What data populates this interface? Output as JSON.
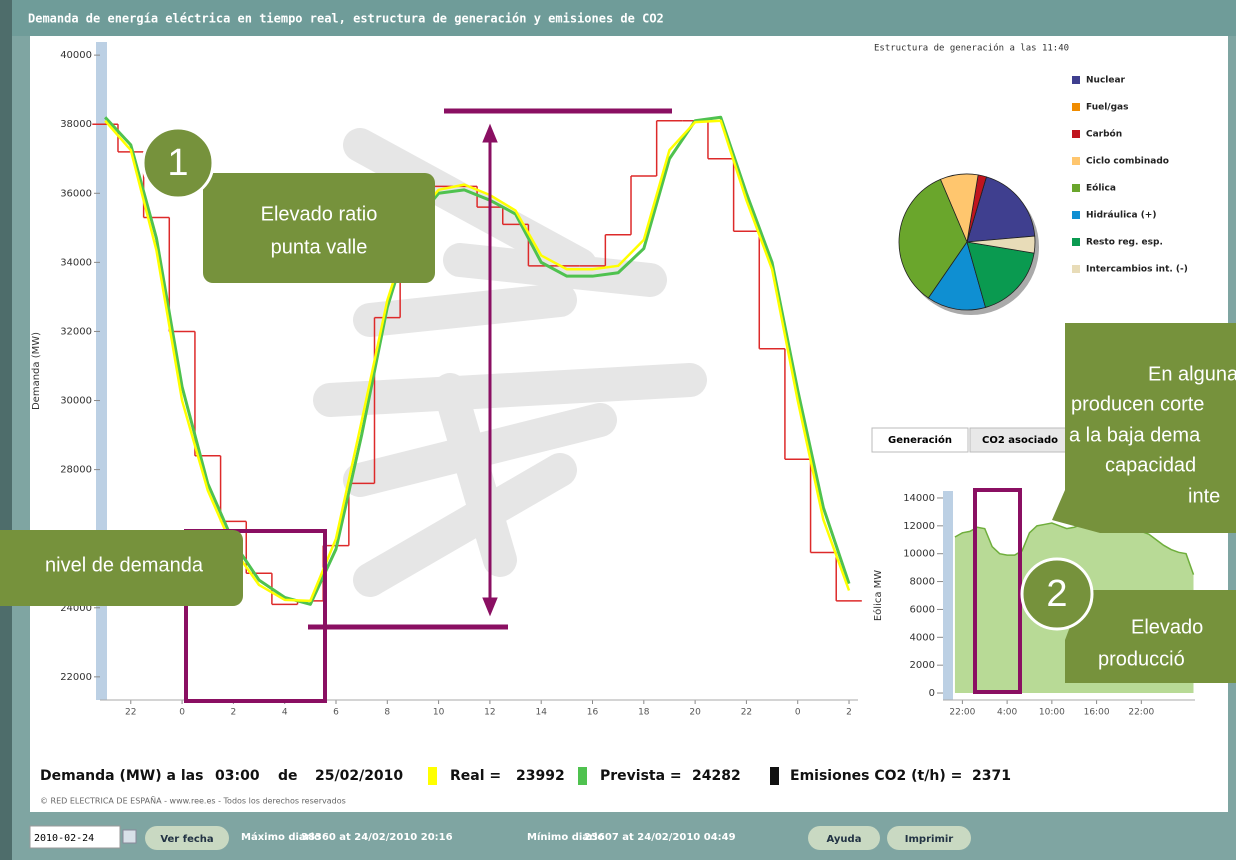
{
  "header": {
    "title": "Demanda de energía eléctrica en tiempo real, estructura de generación y emisiones de CO2"
  },
  "chart_data": [
    {
      "type": "line",
      "y_label": "Demanda (MW)",
      "x": [
        21,
        22,
        23,
        24,
        25,
        26,
        27,
        28,
        29,
        30,
        31,
        32,
        33,
        34,
        35,
        36,
        37,
        38,
        39,
        40,
        41,
        42,
        43,
        44,
        45,
        46,
        47,
        48,
        49,
        50
      ],
      "xlim": [
        20.8,
        50.35
      ],
      "xticks": [
        22,
        {
          "value": 24,
          "label": "0"
        },
        {
          "value": 26,
          "label": "2"
        },
        {
          "value": 28,
          "label": "4"
        },
        {
          "value": 30,
          "label": "6"
        },
        {
          "value": 32,
          "label": "8"
        },
        {
          "value": 34,
          "label": "10"
        },
        {
          "value": 36,
          "label": "12"
        },
        {
          "value": 38,
          "label": "14"
        },
        {
          "value": 40,
          "label": "16"
        },
        {
          "value": 42,
          "label": "18"
        },
        {
          "value": 44,
          "label": "20"
        },
        {
          "value": 46,
          "label": "22"
        },
        {
          "value": 48,
          "label": "0"
        },
        {
          "value": 50,
          "label": "2"
        }
      ],
      "ylim": [
        21330,
        40380
      ],
      "yticks": [
        22000,
        24000,
        26000,
        28000,
        30000,
        32000,
        34000,
        36000,
        38000,
        40000
      ],
      "series": [
        {
          "color": "#dd2a2a",
          "step": true,
          "values": [
            38000,
            37200,
            35300,
            32000,
            28400,
            26500,
            25000,
            24100,
            24200,
            25800,
            27600,
            32400,
            35500,
            36200,
            36200,
            35600,
            35100,
            33900,
            33900,
            33900,
            34800,
            36500,
            38100,
            38100,
            37000,
            34900,
            31500,
            28300,
            25600,
            24200
          ]
        },
        {
          "color": "#4fc24f",
          "values": [
            38200,
            37400,
            34700,
            30400,
            27600,
            25900,
            24800,
            24300,
            24100,
            25700,
            29000,
            32700,
            35100,
            36000,
            36100,
            35800,
            35400,
            34000,
            33600,
            33600,
            33700,
            34400,
            37000,
            38100,
            38200,
            36000,
            34000,
            30300,
            26900,
            24700
          ]
        },
        {
          "color": "#ffff00",
          "values": [
            38100,
            37250,
            34350,
            30000,
            27400,
            25700,
            24660,
            24230,
            24200,
            26000,
            29400,
            32900,
            35200,
            36100,
            36250,
            35950,
            35500,
            34200,
            33800,
            33800,
            33900,
            34650,
            37250,
            38060,
            38100,
            35800,
            33800,
            30000,
            26550,
            24500
          ]
        }
      ]
    },
    {
      "type": "pie",
      "title": "Estructura de generación a las 11:40",
      "categories": [
        "Nuclear",
        "Fuel/gas",
        "Carbón",
        "Ciclo combinado",
        "Eólica",
        "Hidráulica (+)",
        "Resto reg. esp.",
        "Intercambios int. (-)"
      ],
      "values": [
        19,
        0,
        2,
        9,
        34,
        14,
        18,
        4
      ],
      "colors": [
        "#3f3f8f",
        "#f08c00",
        "#c0141e",
        "#ffc66e",
        "#6aa62c",
        "#0f8fd2",
        "#0a9a50",
        "#e8dcb8"
      ]
    },
    {
      "type": "area",
      "tabs": [
        "Generación",
        "CO2 asociado"
      ],
      "y_label": "Eólica MW",
      "color": "#a6d17c",
      "x": [
        21,
        22,
        23,
        24,
        25,
        26,
        27,
        28,
        29,
        30,
        31,
        32,
        33,
        34,
        35,
        36,
        37,
        38,
        39,
        40,
        41,
        42,
        43,
        44,
        45,
        46,
        47,
        48,
        49,
        50,
        51,
        52,
        53
      ],
      "values": [
        11200,
        11500,
        11600,
        11900,
        11800,
        10500,
        10000,
        9900,
        9900,
        10200,
        11500,
        12000,
        12100,
        12200,
        12000,
        11800,
        11900,
        12100,
        12200,
        12300,
        12100,
        12000,
        11900,
        11800,
        11700,
        11600,
        11400,
        11000,
        10600,
        10300,
        10100,
        10000,
        8500
      ],
      "xlim": [
        19.4,
        53.2
      ],
      "xticks": [
        {
          "value": 22,
          "label": "22:00"
        },
        {
          "value": 28,
          "label": "4:00"
        },
        {
          "value": 34,
          "label": "10:00"
        },
        {
          "value": 40,
          "label": "16:00"
        },
        {
          "value": 46,
          "label": "22:00"
        }
      ],
      "ylim": [
        -500,
        14500
      ],
      "yticks": [
        0,
        2000,
        4000,
        6000,
        8000,
        10000,
        12000,
        14000
      ]
    }
  ],
  "annotations": {
    "badge_1": "1",
    "badge_2": "2",
    "callout_1": {
      "lines": [
        "Elevado ratio",
        "punta valle"
      ]
    },
    "callout_left": "nivel de demanda",
    "callout_right_top": {
      "lines": [
        "En alguna",
        "producen corte",
        "a la baja dema",
        "capacidad",
        "inte"
      ]
    },
    "callout_right_bottom": {
      "lines": [
        "Elevado",
        "producció"
      ]
    }
  },
  "readout": {
    "label": "Demanda (MW) a las",
    "time": "03:00",
    "de": "de",
    "date": "25/02/2010",
    "real_label": "Real =",
    "real": 23992,
    "prev_label": "Prevista =",
    "prev": 24282,
    "co2_label": "Emisiones CO2 (t/h) =",
    "co2": 2371
  },
  "copyright": "© RED ELECTRICA DE ESPAÑA - www.ree.es - Todos los derechos reservados",
  "toolbar": {
    "date": "2010-02-24",
    "ver": "Ver fecha",
    "max_label": "Máximo diario",
    "max": "38360 at 24/02/2010 20:16",
    "min_label": "Mínimo diario",
    "min": "23607 at 24/02/2010 04:49",
    "help": "Ayuda",
    "print": "Imprimir"
  }
}
